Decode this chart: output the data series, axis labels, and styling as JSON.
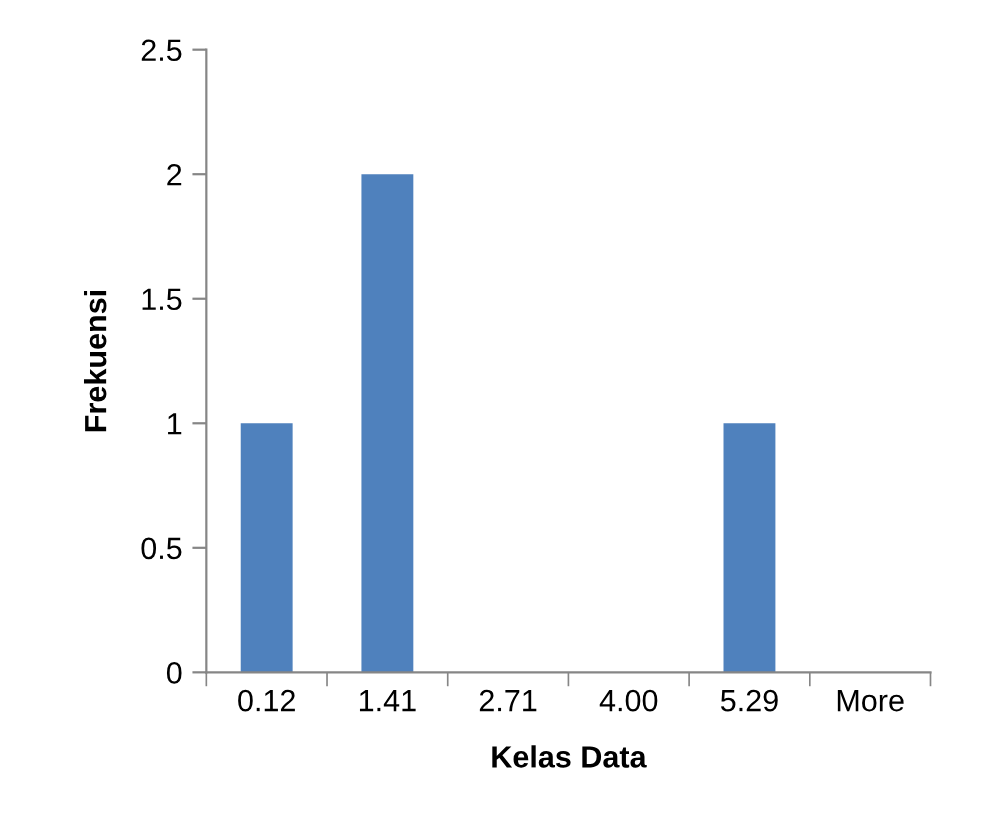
{
  "chart_data": {
    "type": "bar",
    "xlabel": "Kelas Data",
    "ylabel": "Frekuensi",
    "categories": [
      "0.12",
      "1.41",
      "2.71",
      "4.00",
      "5.29",
      "More"
    ],
    "values": [
      1,
      2,
      0,
      0,
      1,
      0
    ],
    "color": "#4f81bd",
    "ylim": [
      0,
      2.5
    ],
    "yticks": [
      0,
      0.5,
      1,
      1.5,
      2,
      2.5
    ],
    "grid": false,
    "legend": false
  }
}
